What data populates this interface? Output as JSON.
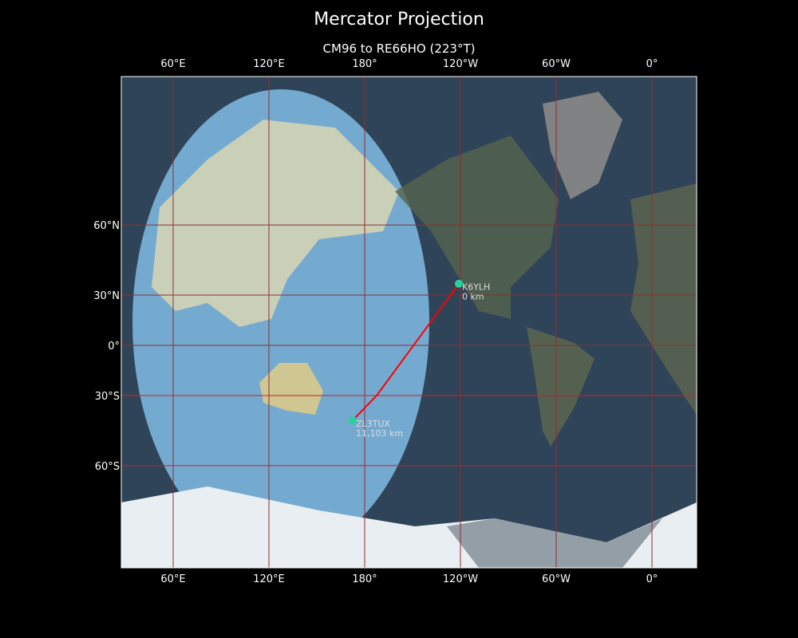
{
  "title": "Mercator Projection",
  "subtitle": "CM96 to RE66HO (223°T)",
  "map": {
    "projection": "mercator",
    "lon_range": [
      27.5,
      388
    ],
    "x_ticks": [
      {
        "lon": 60,
        "label": "60°E"
      },
      {
        "lon": 120,
        "label": "120°E"
      },
      {
        "lon": 180,
        "label": "180°"
      },
      {
        "lon": 240,
        "label": "120°W"
      },
      {
        "lon": 300,
        "label": "60°W"
      },
      {
        "lon": 360,
        "label": "0°"
      }
    ],
    "y_ticks": [
      {
        "lat": 60,
        "label": "60°N"
      },
      {
        "lat": 30,
        "label": "30°N"
      },
      {
        "lat": 0,
        "label": "0°"
      },
      {
        "lat": -30,
        "label": "30°S"
      },
      {
        "lat": -60,
        "label": "60°S"
      }
    ],
    "colors": {
      "day_ocean": "#74a9d0",
      "night": "#2f4458",
      "path": "#ff0000",
      "marker": "#22d39a",
      "grid": "#8a3030",
      "grid_south": "#cc2020"
    },
    "stations": [
      {
        "call": "K6YLH",
        "distance": "0 km",
        "lat": 36,
        "lon": 239
      },
      {
        "call": "ZL3TUX",
        "distance": "11,103 km",
        "lat": -42.5,
        "lon": 172.5
      }
    ],
    "path_waypoint": {
      "lat": -30,
      "lon": 187.5
    }
  }
}
